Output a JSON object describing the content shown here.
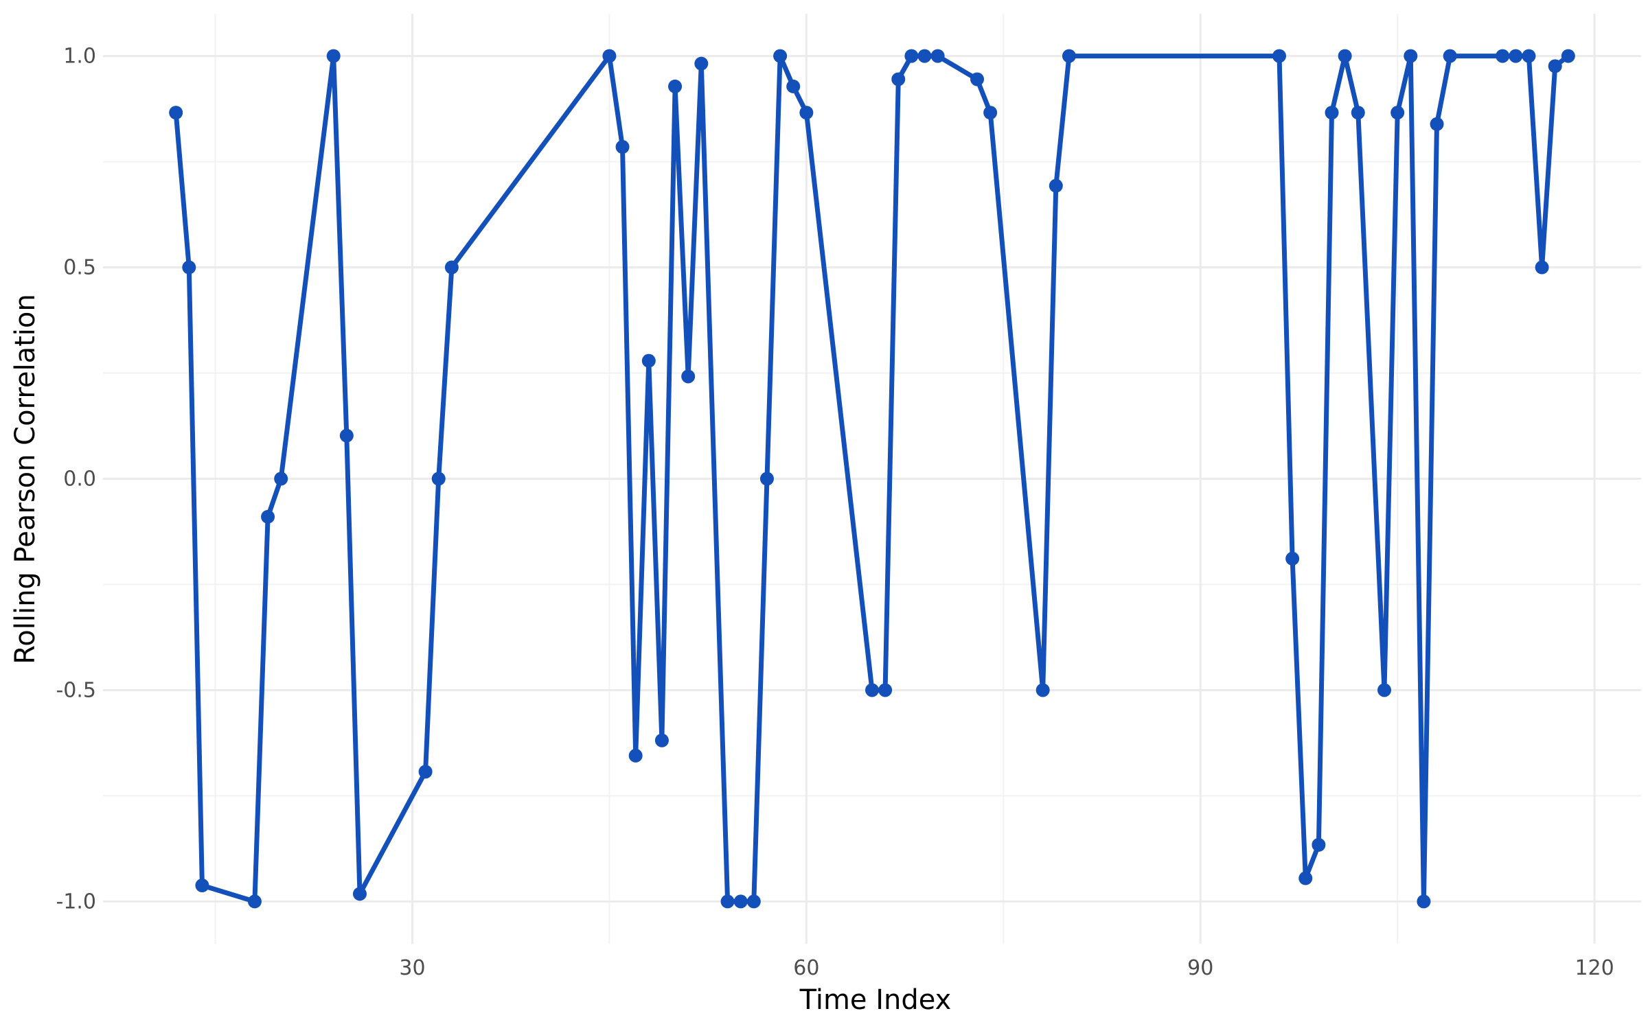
{
  "chart_data": {
    "type": "line",
    "xlabel": "Time Index",
    "ylabel": "Rolling Pearson Correlation",
    "xlim": [
      6.45,
      123.55
    ],
    "ylim": [
      -1.1,
      1.1
    ],
    "x_ticks": [
      30,
      60,
      90,
      120
    ],
    "x_minor_ticks": [
      15,
      45,
      75,
      105
    ],
    "y_ticks": [
      -1.0,
      -0.5,
      0.0,
      0.5,
      1.0
    ],
    "y_tick_labels": [
      "-1.0",
      "-0.5",
      "0.0",
      "0.5",
      "1.0"
    ],
    "y_minor_ticks": [
      -0.75,
      -0.25,
      0.25,
      0.75
    ],
    "grid": true,
    "legend": "none",
    "colors": {
      "line": "#1450b9",
      "grid_major": "#ebebeb",
      "grid_minor": "#f2f2f2"
    },
    "series": [
      {
        "points": [
          [
            12,
            0.866
          ],
          [
            13,
            0.5
          ],
          [
            14,
            -0.962
          ],
          [
            18,
            -1.0
          ],
          [
            19,
            -0.09
          ],
          [
            20,
            0.0
          ],
          [
            24,
            1.0
          ],
          [
            25,
            0.102
          ],
          [
            26,
            -0.982
          ],
          [
            31,
            -0.693
          ],
          [
            32,
            0.0
          ],
          [
            33,
            0.5
          ],
          [
            45,
            1.0
          ],
          [
            46,
            0.785
          ],
          [
            47,
            -0.655
          ],
          [
            48,
            0.279
          ],
          [
            49,
            -0.619
          ],
          [
            50,
            0.928
          ],
          [
            51,
            0.242
          ],
          [
            52,
            0.982
          ],
          [
            54,
            -1.0
          ],
          [
            55,
            -1.0
          ],
          [
            56,
            -1.0
          ],
          [
            57,
            0.0
          ],
          [
            58,
            1.0
          ],
          [
            59,
            0.928
          ],
          [
            60,
            0.866
          ],
          [
            65,
            -0.5
          ],
          [
            66,
            -0.5
          ],
          [
            67,
            0.945
          ],
          [
            68,
            1.0
          ],
          [
            69,
            1.0
          ],
          [
            70,
            1.0
          ],
          [
            73,
            0.945
          ],
          [
            74,
            0.866
          ],
          [
            78,
            -0.5
          ],
          [
            79,
            0.693
          ],
          [
            80,
            1.0
          ],
          [
            96,
            1.0
          ],
          [
            97,
            -0.189
          ],
          [
            98,
            -0.945
          ],
          [
            99,
            -0.866
          ],
          [
            100,
            0.866
          ],
          [
            101,
            1.0
          ],
          [
            102,
            0.866
          ],
          [
            104,
            -0.5
          ],
          [
            105,
            0.866
          ],
          [
            106,
            1.0
          ],
          [
            107,
            -1.0
          ],
          [
            108,
            0.839
          ],
          [
            109,
            1.0
          ],
          [
            113,
            1.0
          ],
          [
            114,
            1.0
          ],
          [
            115,
            1.0
          ],
          [
            116,
            0.5
          ],
          [
            117,
            0.976
          ],
          [
            118,
            1.0
          ]
        ]
      }
    ]
  }
}
